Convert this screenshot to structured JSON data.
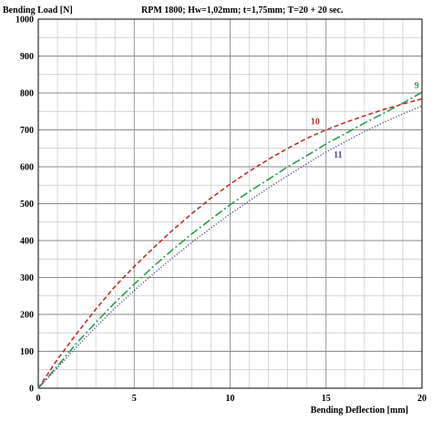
{
  "chart_data": {
    "type": "line",
    "title": "RPM 1800;   Hw=1,02mm;   t=1,75mm;   T=20 + 20 sec.",
    "xlabel": "Bending Deflection [mm]",
    "ylabel": "Bending Load [N]",
    "xlim": [
      0,
      20
    ],
    "ylim": [
      0,
      1000
    ],
    "x_ticks": [
      0,
      5,
      10,
      15,
      20
    ],
    "y_ticks": [
      0,
      100,
      200,
      300,
      400,
      500,
      600,
      700,
      800,
      900,
      1000
    ],
    "x_tick_labels": [
      "0",
      "5",
      "10",
      "15",
      "20"
    ],
    "y_tick_labels": [
      "0",
      "100",
      "200",
      "300",
      "400",
      "500",
      "600",
      "700",
      "800",
      "900",
      "1000"
    ],
    "grid": true,
    "x_minor_step": 1,
    "y_minor_step": 50,
    "series": [
      {
        "label": "10",
        "color": "#c0302a",
        "style": "dashed",
        "x": [
          0,
          1,
          2,
          3,
          4,
          5,
          6,
          7,
          8,
          9,
          10,
          11,
          12,
          13,
          14,
          15,
          16,
          17,
          18,
          19,
          20
        ],
        "y": [
          0,
          78,
          148,
          214,
          276,
          330,
          380,
          428,
          473,
          515,
          553,
          588,
          620,
          650,
          677,
          700,
          720,
          738,
          755,
          770,
          784
        ]
      },
      {
        "label": "9",
        "color": "#2e9a4e",
        "style": "dashdot",
        "x": [
          0,
          1,
          2,
          3,
          4,
          5,
          6,
          7,
          8,
          9,
          10,
          11,
          12,
          13,
          14,
          15,
          16,
          17,
          18,
          19,
          20
        ],
        "y": [
          0,
          60,
          122,
          178,
          232,
          282,
          330,
          375,
          418,
          458,
          497,
          533,
          566,
          600,
          630,
          662,
          690,
          718,
          745,
          772,
          802
        ]
      },
      {
        "label": "11",
        "color": "#4f4f8f",
        "style": "dotted",
        "x": [
          0,
          1,
          2,
          3,
          4,
          5,
          6,
          7,
          8,
          9,
          10,
          11,
          12,
          13,
          14,
          15,
          16,
          17,
          18,
          19,
          20
        ],
        "y": [
          0,
          55,
          112,
          166,
          217,
          265,
          310,
          353,
          395,
          434,
          472,
          508,
          543,
          576,
          608,
          640,
          668,
          695,
          720,
          743,
          765
        ]
      }
    ]
  }
}
